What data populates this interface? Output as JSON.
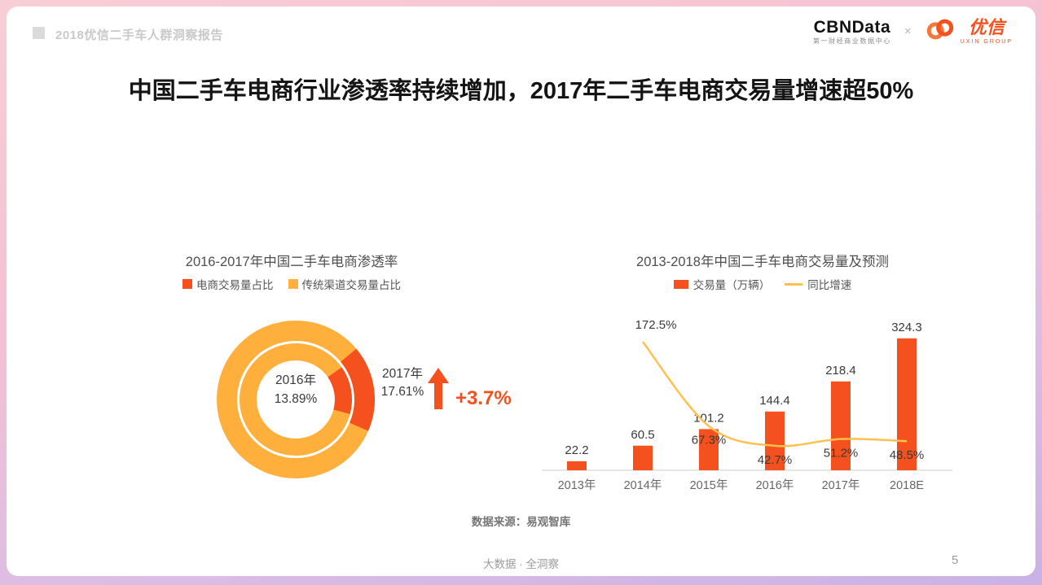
{
  "header": {
    "report_title": "2018优信二手车人群洞察报告",
    "cbndata": {
      "name": "CBNData",
      "subtitle": "第一财经商业数据中心"
    },
    "separator": "×",
    "uxin": {
      "name": "优信",
      "subtitle": "UXIN GROUP"
    }
  },
  "main_title": "中国二手车电商行业渗透率持续增加，2017年二手车电商交易量增速超50%",
  "colors": {
    "accent_red": "#f4511e",
    "donut_orange": "#ffb03c",
    "line_yellow": "#ffc14d",
    "axis_gray": "#dddddd",
    "label_dark": "#3a3a3a",
    "year_gray": "#666666"
  },
  "chart_data": [
    {
      "type": "pie",
      "variant": "double-ring-donut",
      "title": "2016-2017年中国二手车电商渗透率",
      "legend": [
        "电商交易量占比",
        "传统渠道交易量占比"
      ],
      "rings": [
        {
          "year": "2016年",
          "share_pct": 13.89,
          "share_label": "13.89%",
          "ring": "inner"
        },
        {
          "year": "2017年",
          "share_pct": 17.61,
          "share_label": "17.61%",
          "ring": "outer"
        }
      ],
      "delta_label": "+3.7%"
    },
    {
      "type": "bar",
      "title": "2013-2018年中国二手车电商交易量及预测",
      "categories": [
        "2013年",
        "2014年",
        "2015年",
        "2016年",
        "2017年",
        "2018E"
      ],
      "series": [
        {
          "name": "交易量（万辆）",
          "type": "bar",
          "values": [
            22.2,
            60.5,
            101.2,
            144.4,
            218.4,
            324.3
          ]
        },
        {
          "name": "同比增速",
          "type": "line",
          "unit": "%",
          "values": [
            null,
            172.5,
            67.3,
            42.7,
            51.2,
            48.5
          ]
        }
      ],
      "grid": false,
      "legend_position": "top"
    }
  ],
  "source": "数据来源：易观智库",
  "footer": {
    "center": "大数据 · 全洞察",
    "page_number": "5"
  }
}
